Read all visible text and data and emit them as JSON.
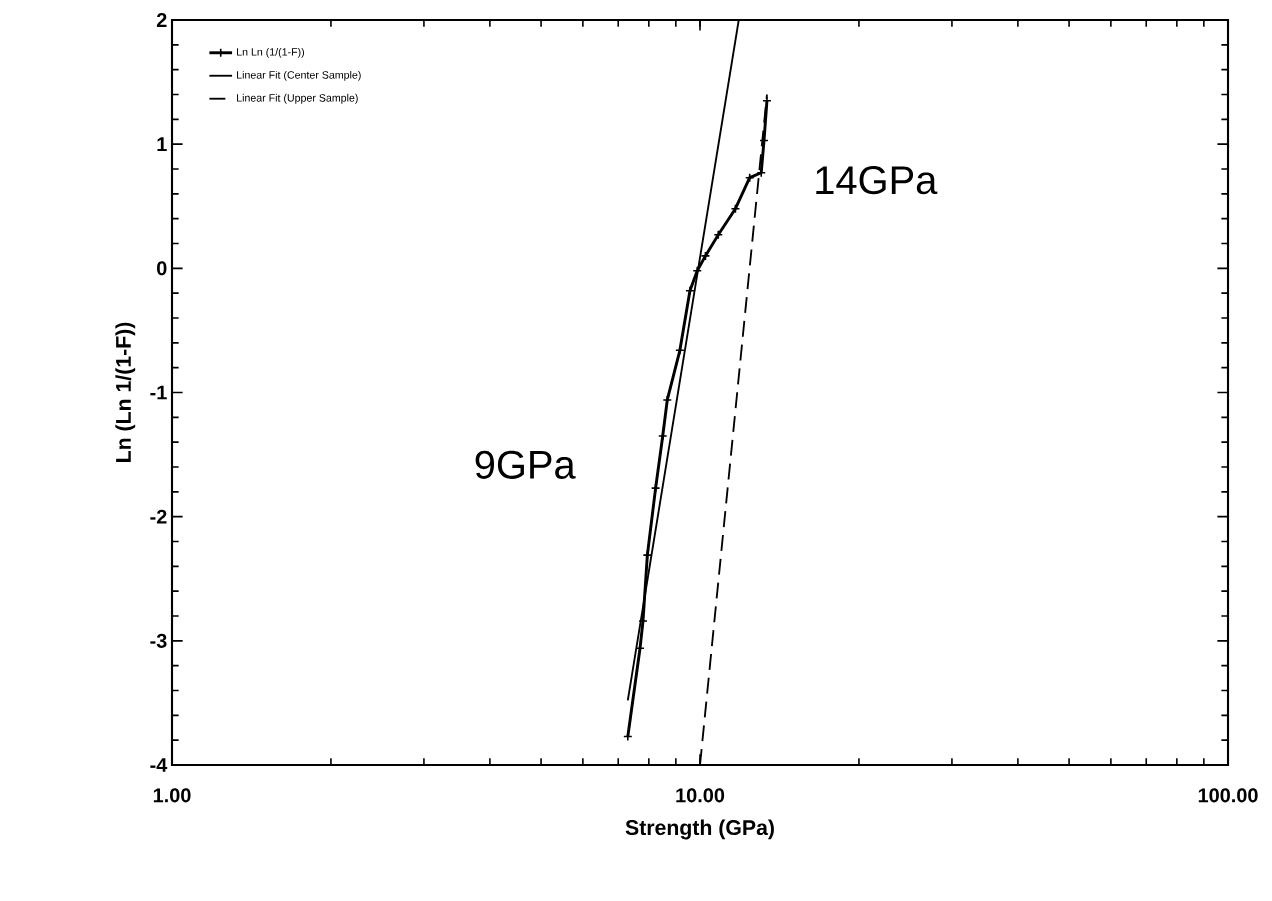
{
  "chart_data": {
    "type": "line",
    "xlabel": "Strength (GPa)",
    "ylabel": "Ln (Ln 1/(1-F))",
    "log": "x",
    "grid": false,
    "legend": "top left",
    "xlim": [
      1,
      100
    ],
    "ylim": [
      -4,
      2
    ],
    "xticks": [
      {
        "value": 1,
        "label": "1.00"
      },
      {
        "value": 10,
        "label": "10.00"
      },
      {
        "value": 100,
        "label": "100.00"
      }
    ],
    "yticks": [
      -4,
      -3,
      -2,
      -1,
      0,
      1,
      2
    ],
    "series": [
      {
        "name": "Ln Ln (1/(1-F))",
        "color": "#000000",
        "marker": "cross",
        "line_style": "solid",
        "x": [
          7.3,
          7.7,
          7.8,
          7.95,
          8.24,
          8.5,
          8.67,
          9.16,
          9.57,
          9.88,
          10.24,
          10.83,
          11.67,
          12.42,
          13.06,
          13.22,
          13.39
        ],
        "values": [
          -3.77,
          -3.06,
          -2.84,
          -2.31,
          -1.77,
          -1.35,
          -1.06,
          -0.66,
          -0.18,
          -0.02,
          0.1,
          0.27,
          0.48,
          0.73,
          0.77,
          1.03,
          1.35
        ]
      },
      {
        "name": "Linear Fit (Center Sample)",
        "color": "#000000",
        "marker": "none",
        "line_style": "solid",
        "x": [
          7.3,
          11.84
        ],
        "values": [
          -3.48,
          2.0
        ]
      },
      {
        "name": "Linear Fit (Upper Sample)",
        "color": "#000000",
        "marker": "none",
        "line_style": "dashed",
        "x": [
          10.0,
          13.39
        ],
        "values": [
          -4.0,
          1.4
        ]
      }
    ],
    "annotations": [
      "9GPa",
      "14GPa"
    ]
  }
}
